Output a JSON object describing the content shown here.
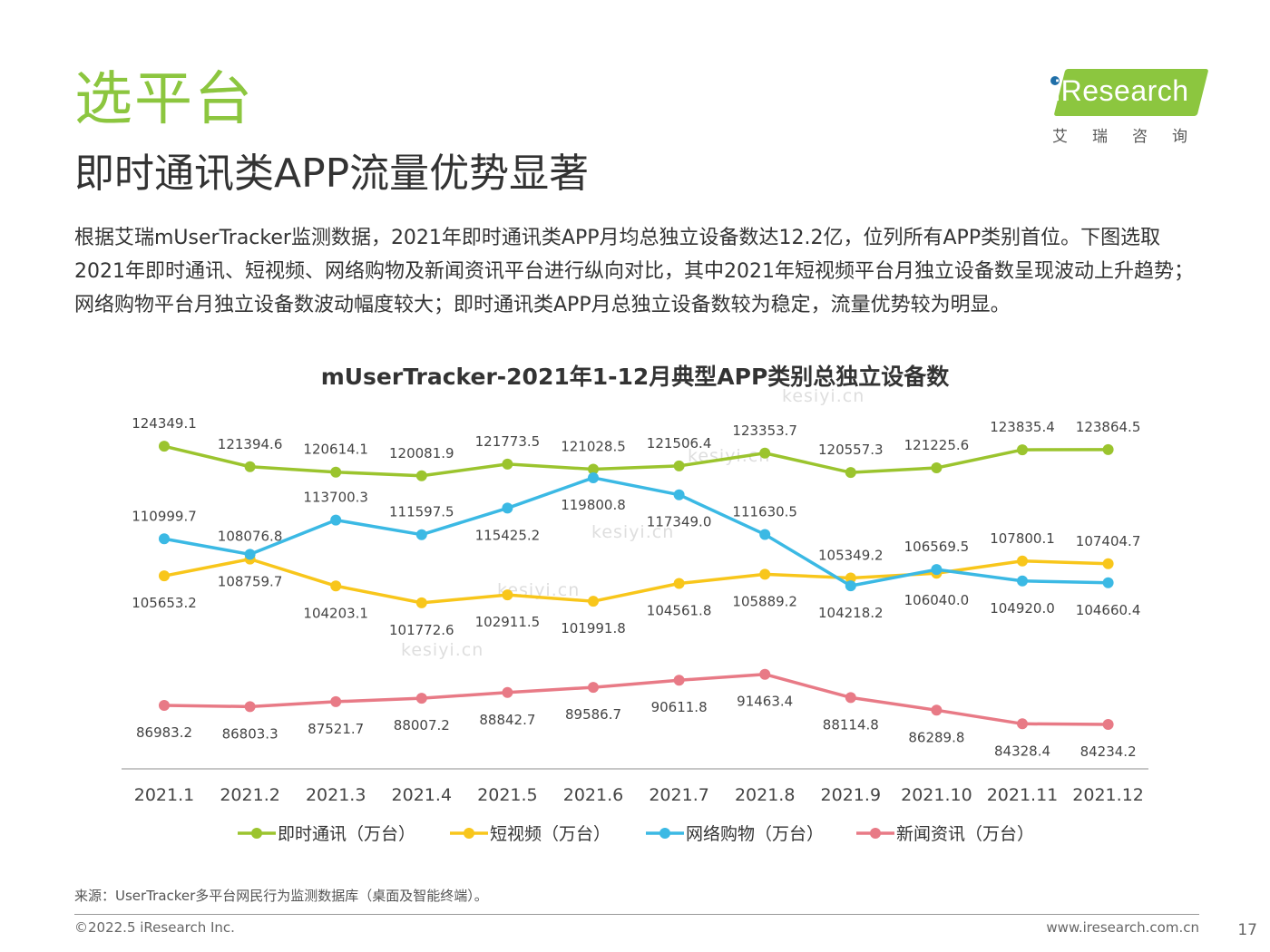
{
  "header": {
    "section_title": "选平台",
    "headline": "即时通讯类APP流量优势显著",
    "body": "根据艾瑞mUserTracker监测数据，2021年即时通讯类APP月均总独立设备数达12.2亿，位列所有APP类别首位。下图选取2021年即时通讯、短视频、网络购物及新闻资讯平台进行纵向对比，其中2021年短视频平台月独立设备数呈现波动上升趋势；网络购物平台月独立设备数波动幅度较大；即时通讯类APP月总独立设备数较为稳定，流量优势较为明显。"
  },
  "logo": {
    "brand": "iResearch",
    "cn": "艾瑞咨询"
  },
  "watermarks": [
    "kesiyi.cn",
    "kesiyi.cn",
    "kesiyi.cn",
    "kesiyi.cn",
    "kesiyi.cn"
  ],
  "chart_data": {
    "type": "line",
    "title": "mUserTracker-2021年1-12月典型APP类别总独立设备数",
    "xlabel": "",
    "ylabel": "",
    "categories": [
      "2021.1",
      "2021.2",
      "2021.3",
      "2021.4",
      "2021.5",
      "2021.6",
      "2021.7",
      "2021.8",
      "2021.9",
      "2021.10",
      "2021.11",
      "2021.12"
    ],
    "ylim": [
      80000,
      128000
    ],
    "legend_position": "bottom",
    "grid": false,
    "series": [
      {
        "name": "即时通讯（万台）",
        "color": "#9bc42e",
        "values": [
          124349.1,
          121394.6,
          120614.1,
          120081.9,
          121773.5,
          121028.5,
          121506.4,
          123353.7,
          120557.3,
          121225.6,
          123835.4,
          123864.5
        ],
        "label_pos": "above"
      },
      {
        "name": "短视频（万台）",
        "color": "#f8c61b",
        "values": [
          105653.2,
          108076.8,
          104203.1,
          101772.6,
          102911.5,
          101991.8,
          104561.8,
          105889.2,
          105349.2,
          106040.0,
          107800.1,
          107404.7
        ],
        "label_pos": [
          "below",
          "above",
          "below",
          "below",
          "below",
          "below",
          "below",
          "below",
          "above",
          "below",
          "above",
          "above"
        ]
      },
      {
        "name": "网络购物（万台）",
        "color": "#3bb9e4",
        "values": [
          110999.7,
          108759.7,
          113700.3,
          111597.5,
          115425.2,
          119800.8,
          117349.0,
          111630.5,
          104218.2,
          106569.5,
          104920.0,
          104660.4
        ],
        "label_pos": [
          "above",
          "below",
          "above",
          "above",
          "below",
          "below",
          "below",
          "above",
          "below",
          "above",
          "below",
          "below"
        ]
      },
      {
        "name": "新闻资讯（万台）",
        "color": "#e87a86",
        "values": [
          86983.2,
          86803.3,
          87521.7,
          88007.2,
          88842.7,
          89586.7,
          90611.8,
          91463.4,
          88114.8,
          86289.8,
          84328.4,
          84234.2
        ],
        "label_pos": "below"
      }
    ]
  },
  "footer": {
    "source": "来源：UserTracker多平台网民行为监测数据库（桌面及智能终端）。",
    "copyright": "©2022.5 iResearch Inc.",
    "site": "www.iresearch.com.cn",
    "page": "17"
  }
}
